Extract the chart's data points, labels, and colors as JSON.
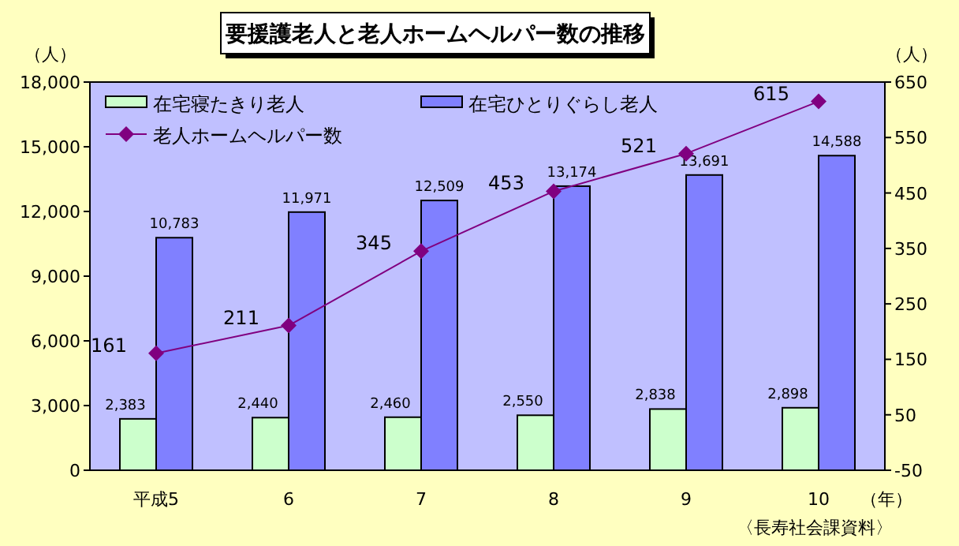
{
  "chart_data": {
    "type": "bar",
    "title": "要援護老人と老人ホームヘルパー数の推移",
    "categories": [
      "平成5",
      "6",
      "7",
      "8",
      "9",
      "10"
    ],
    "xlabel": "（年）",
    "ylabel": "（人）",
    "y2label": "（人）",
    "series": [
      {
        "name": "在宅寝たきり老人",
        "color": "#ccffcc",
        "values": [
          2383,
          2440,
          2460,
          2550,
          2838,
          2898
        ],
        "value_labels": [
          "2,383",
          "2,440",
          "2,460",
          "2,550",
          "2,838",
          "2,898"
        ]
      },
      {
        "name": "在宅ひとりぐらし老人",
        "color": "#8080ff",
        "values": [
          10783,
          11971,
          12509,
          13174,
          13691,
          14588
        ],
        "value_labels": [
          "10,783",
          "11,971",
          "12,509",
          "13,174",
          "13,691",
          "14,588"
        ]
      },
      {
        "name": "老人ホームヘルパー数",
        "type": "line",
        "axis": "y2",
        "color": "#800080",
        "marker": "diamond",
        "values": [
          161,
          211,
          345,
          453,
          521,
          615
        ],
        "value_labels": [
          "161",
          "211",
          "345",
          "453",
          "521",
          "615"
        ]
      }
    ],
    "ylim": [
      0,
      18000
    ],
    "yticks": [
      {
        "value": 0,
        "label": "0"
      },
      {
        "value": 3000,
        "label": "3,000"
      },
      {
        "value": 6000,
        "label": "6,000"
      },
      {
        "value": 9000,
        "label": "9,000"
      },
      {
        "value": 12000,
        "label": "12,000"
      },
      {
        "value": 15000,
        "label": "15,000"
      },
      {
        "value": 18000,
        "label": "18,000"
      }
    ],
    "y2lim": [
      -50,
      650
    ],
    "y2ticks": [
      -50,
      50,
      150,
      250,
      350,
      450,
      550,
      650
    ],
    "legend": "top left",
    "grid": false,
    "annotations": [
      "〈長寿社会課資料〉"
    ]
  }
}
